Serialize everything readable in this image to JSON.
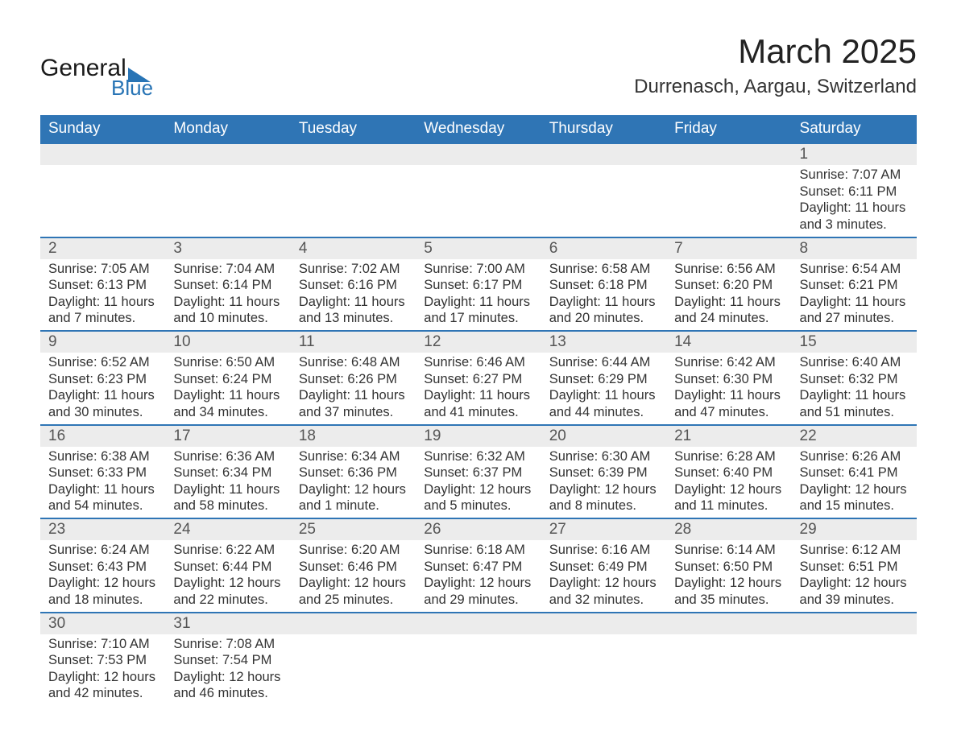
{
  "logo": {
    "text1": "General",
    "text2": "Blue",
    "triangle_color": "#2874b5"
  },
  "title": "March 2025",
  "location": "Durrenasch, Aargau, Switzerland",
  "colors": {
    "header_bg": "#2f75b5",
    "header_text": "#ffffff",
    "daynum_bg": "#ececec",
    "divider": "#2f75b5",
    "body_text": "#333333"
  },
  "days_of_week": [
    "Sunday",
    "Monday",
    "Tuesday",
    "Wednesday",
    "Thursday",
    "Friday",
    "Saturday"
  ],
  "weeks": [
    [
      null,
      null,
      null,
      null,
      null,
      null,
      {
        "n": "1",
        "sunrise": "7:07 AM",
        "sunset": "6:11 PM",
        "daylight": "11 hours and 3 minutes."
      }
    ],
    [
      {
        "n": "2",
        "sunrise": "7:05 AM",
        "sunset": "6:13 PM",
        "daylight": "11 hours and 7 minutes."
      },
      {
        "n": "3",
        "sunrise": "7:04 AM",
        "sunset": "6:14 PM",
        "daylight": "11 hours and 10 minutes."
      },
      {
        "n": "4",
        "sunrise": "7:02 AM",
        "sunset": "6:16 PM",
        "daylight": "11 hours and 13 minutes."
      },
      {
        "n": "5",
        "sunrise": "7:00 AM",
        "sunset": "6:17 PM",
        "daylight": "11 hours and 17 minutes."
      },
      {
        "n": "6",
        "sunrise": "6:58 AM",
        "sunset": "6:18 PM",
        "daylight": "11 hours and 20 minutes."
      },
      {
        "n": "7",
        "sunrise": "6:56 AM",
        "sunset": "6:20 PM",
        "daylight": "11 hours and 24 minutes."
      },
      {
        "n": "8",
        "sunrise": "6:54 AM",
        "sunset": "6:21 PM",
        "daylight": "11 hours and 27 minutes."
      }
    ],
    [
      {
        "n": "9",
        "sunrise": "6:52 AM",
        "sunset": "6:23 PM",
        "daylight": "11 hours and 30 minutes."
      },
      {
        "n": "10",
        "sunrise": "6:50 AM",
        "sunset": "6:24 PM",
        "daylight": "11 hours and 34 minutes."
      },
      {
        "n": "11",
        "sunrise": "6:48 AM",
        "sunset": "6:26 PM",
        "daylight": "11 hours and 37 minutes."
      },
      {
        "n": "12",
        "sunrise": "6:46 AM",
        "sunset": "6:27 PM",
        "daylight": "11 hours and 41 minutes."
      },
      {
        "n": "13",
        "sunrise": "6:44 AM",
        "sunset": "6:29 PM",
        "daylight": "11 hours and 44 minutes."
      },
      {
        "n": "14",
        "sunrise": "6:42 AM",
        "sunset": "6:30 PM",
        "daylight": "11 hours and 47 minutes."
      },
      {
        "n": "15",
        "sunrise": "6:40 AM",
        "sunset": "6:32 PM",
        "daylight": "11 hours and 51 minutes."
      }
    ],
    [
      {
        "n": "16",
        "sunrise": "6:38 AM",
        "sunset": "6:33 PM",
        "daylight": "11 hours and 54 minutes."
      },
      {
        "n": "17",
        "sunrise": "6:36 AM",
        "sunset": "6:34 PM",
        "daylight": "11 hours and 58 minutes."
      },
      {
        "n": "18",
        "sunrise": "6:34 AM",
        "sunset": "6:36 PM",
        "daylight": "12 hours and 1 minute."
      },
      {
        "n": "19",
        "sunrise": "6:32 AM",
        "sunset": "6:37 PM",
        "daylight": "12 hours and 5 minutes."
      },
      {
        "n": "20",
        "sunrise": "6:30 AM",
        "sunset": "6:39 PM",
        "daylight": "12 hours and 8 minutes."
      },
      {
        "n": "21",
        "sunrise": "6:28 AM",
        "sunset": "6:40 PM",
        "daylight": "12 hours and 11 minutes."
      },
      {
        "n": "22",
        "sunrise": "6:26 AM",
        "sunset": "6:41 PM",
        "daylight": "12 hours and 15 minutes."
      }
    ],
    [
      {
        "n": "23",
        "sunrise": "6:24 AM",
        "sunset": "6:43 PM",
        "daylight": "12 hours and 18 minutes."
      },
      {
        "n": "24",
        "sunrise": "6:22 AM",
        "sunset": "6:44 PM",
        "daylight": "12 hours and 22 minutes."
      },
      {
        "n": "25",
        "sunrise": "6:20 AM",
        "sunset": "6:46 PM",
        "daylight": "12 hours and 25 minutes."
      },
      {
        "n": "26",
        "sunrise": "6:18 AM",
        "sunset": "6:47 PM",
        "daylight": "12 hours and 29 minutes."
      },
      {
        "n": "27",
        "sunrise": "6:16 AM",
        "sunset": "6:49 PM",
        "daylight": "12 hours and 32 minutes."
      },
      {
        "n": "28",
        "sunrise": "6:14 AM",
        "sunset": "6:50 PM",
        "daylight": "12 hours and 35 minutes."
      },
      {
        "n": "29",
        "sunrise": "6:12 AM",
        "sunset": "6:51 PM",
        "daylight": "12 hours and 39 minutes."
      }
    ],
    [
      {
        "n": "30",
        "sunrise": "7:10 AM",
        "sunset": "7:53 PM",
        "daylight": "12 hours and 42 minutes."
      },
      {
        "n": "31",
        "sunrise": "7:08 AM",
        "sunset": "7:54 PM",
        "daylight": "12 hours and 46 minutes."
      },
      null,
      null,
      null,
      null,
      null
    ]
  ],
  "labels": {
    "sunrise": "Sunrise: ",
    "sunset": "Sunset: ",
    "daylight": "Daylight: "
  }
}
